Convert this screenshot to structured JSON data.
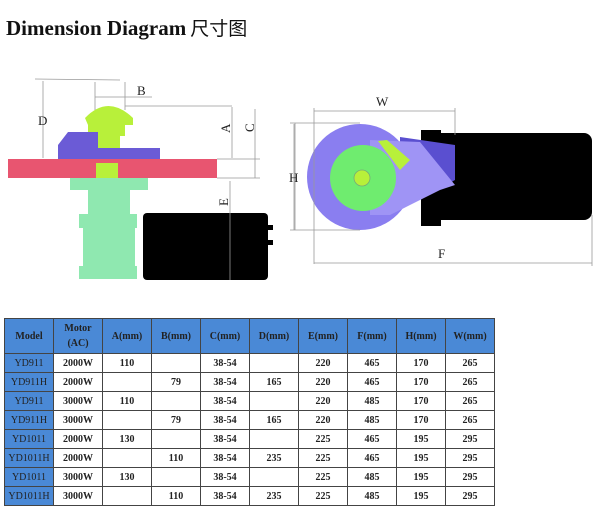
{
  "title": {
    "en": "Dimension Diagram",
    "cn": "尺寸图"
  },
  "diagram": {
    "labels": {
      "a": "A",
      "b": "B",
      "c": "C",
      "d": "D",
      "e": "E",
      "f": "F",
      "h": "H",
      "w": "W"
    }
  },
  "table": {
    "headers": [
      "Model",
      "Motor (AC)",
      "A(mm)",
      "B(mm)",
      "C(mm)",
      "D(mm)",
      "E(mm)",
      "F(mm)",
      "H(mm)",
      "W(mm)"
    ],
    "rows": [
      [
        "YD911",
        "2000W",
        "110",
        "",
        "38-54",
        "",
        "220",
        "465",
        "170",
        "265"
      ],
      [
        "YD911H",
        "2000W",
        "",
        "79",
        "38-54",
        "165",
        "220",
        "465",
        "170",
        "265"
      ],
      [
        "YD911",
        "3000W",
        "110",
        "",
        "38-54",
        "",
        "220",
        "485",
        "170",
        "265"
      ],
      [
        "YD911H",
        "3000W",
        "",
        "79",
        "38-54",
        "165",
        "220",
        "485",
        "170",
        "265"
      ],
      [
        "YD1011",
        "2000W",
        "130",
        "",
        "38-54",
        "",
        "225",
        "465",
        "195",
        "295"
      ],
      [
        "YD1011H",
        "2000W",
        "",
        "110",
        "38-54",
        "235",
        "225",
        "465",
        "195",
        "295"
      ],
      [
        "YD1011",
        "3000W",
        "130",
        "",
        "38-54",
        "",
        "225",
        "485",
        "195",
        "295"
      ],
      [
        "YD1011H",
        "3000W",
        "",
        "110",
        "38-54",
        "235",
        "225",
        "485",
        "195",
        "295"
      ]
    ]
  }
}
